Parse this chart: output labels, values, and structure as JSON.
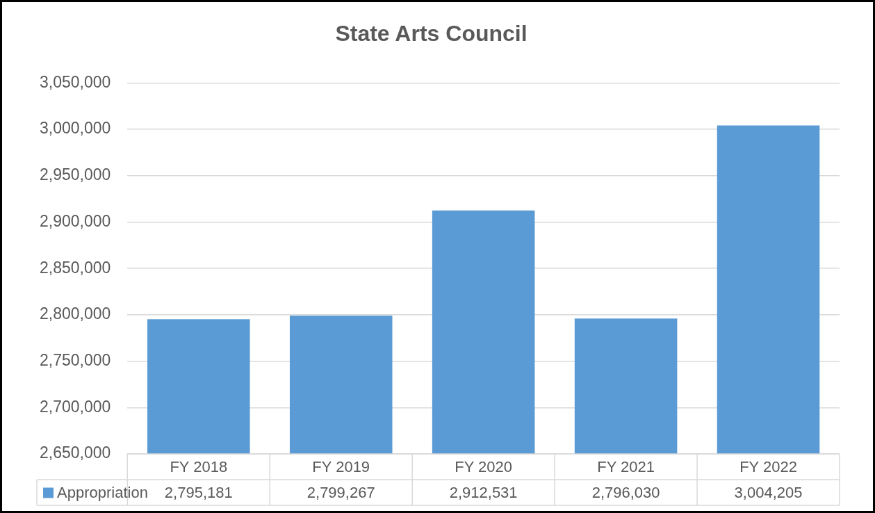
{
  "chart_data": {
    "type": "bar",
    "title": "State Arts Council",
    "categories": [
      "FY 2018",
      "FY 2019",
      "FY 2020",
      "FY 2021",
      "FY 2022"
    ],
    "series": [
      {
        "name": "Appropriation",
        "color": "#5b9bd5",
        "values": [
          2795181,
          2799267,
          2912531,
          2796030,
          3004205
        ],
        "value_labels": [
          "2,795,181",
          "2,799,267",
          "2,912,531",
          "2,796,030",
          "3,004,205"
        ]
      }
    ],
    "ylim": [
      2650000,
      3050000
    ],
    "yticks": [
      {
        "value": 2650000,
        "label": "2,650,000"
      },
      {
        "value": 2700000,
        "label": "2,700,000"
      },
      {
        "value": 2750000,
        "label": "2,750,000"
      },
      {
        "value": 2800000,
        "label": "2,800,000"
      },
      {
        "value": 2850000,
        "label": "2,850,000"
      },
      {
        "value": 2900000,
        "label": "2,900,000"
      },
      {
        "value": 2950000,
        "label": "2,950,000"
      },
      {
        "value": 3000000,
        "label": "3,000,000"
      },
      {
        "value": 3050000,
        "label": "3,050,000"
      }
    ],
    "grid": "y",
    "legend": "bottom"
  }
}
